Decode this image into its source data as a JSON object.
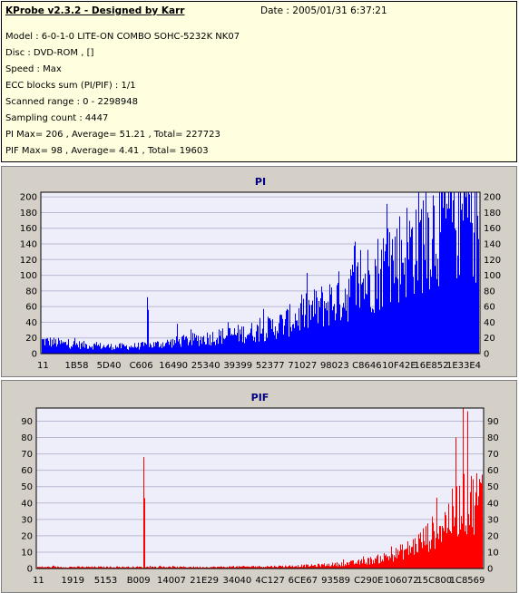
{
  "header": {
    "app_title": "KProbe v2.3.2 - Designed by Karr",
    "date_text": "Date : 2005/01/31 6:37:21",
    "lines": [
      "Model : 6-0-1-0 LITE-ON COMBO SOHC-5232K NK07",
      "Disc : DVD-ROM ,  []",
      "Speed : Max",
      "ECC blocks sum (PI/PIF) : 1/1",
      "Scanned range : 0 - 2298948",
      "Sampling count : 4447",
      "PI Max= 206 , Average= 51.21 , Total= 227723",
      "PIF Max= 98 , Average= 4.41 , Total= 19603"
    ]
  },
  "colors": {
    "panel_bg": "#d4d0c8",
    "info_bg": "#ffffe0",
    "plot_bg": "#eeeefa",
    "pi_bar": "#0000ff",
    "pif_bar": "#ff0000",
    "title_color": "#000080"
  },
  "chart_data": [
    {
      "type": "bar",
      "title": "PI",
      "ylim": [
        0,
        206
      ],
      "yticks": [
        0,
        20,
        40,
        60,
        80,
        100,
        120,
        140,
        160,
        180,
        200
      ],
      "xtick_labels": [
        "11",
        "1B58",
        "5D40",
        "C606",
        "16490",
        "25340",
        "39399",
        "52377",
        "71027",
        "98023",
        "C8646",
        "10F42E",
        "16E852",
        "1E33E4"
      ],
      "grid": true,
      "x_range": [
        0,
        2298948
      ],
      "profile": {
        "x": [
          0.0,
          0.05,
          0.1,
          0.15,
          0.2,
          0.25,
          0.3,
          0.35,
          0.4,
          0.45,
          0.5,
          0.55,
          0.6,
          0.65,
          0.7,
          0.75,
          0.8,
          0.85,
          0.88,
          0.9,
          0.92,
          0.95,
          1.0
        ],
        "y": [
          18,
          14,
          12,
          10,
          10,
          12,
          16,
          20,
          24,
          28,
          32,
          42,
          56,
          70,
          86,
          108,
          130,
          155,
          170,
          182,
          190,
          196,
          198
        ]
      },
      "spikes": [
        {
          "x": 0.241,
          "y": 72
        },
        {
          "x": 0.243,
          "y": 56
        },
        {
          "x": 0.31,
          "y": 38
        }
      ]
    },
    {
      "type": "bar",
      "title": "PIF",
      "ylim": [
        0,
        98
      ],
      "yticks": [
        0,
        10,
        20,
        30,
        40,
        50,
        60,
        70,
        80,
        90
      ],
      "xtick_labels": [
        "11",
        "1919",
        "5153",
        "B009",
        "14007",
        "21E29",
        "34040",
        "4C127",
        "6CE67",
        "93589",
        "C290E",
        "106072",
        "15C800",
        "1C8569"
      ],
      "grid": true,
      "x_range": [
        0,
        2298948
      ],
      "profile": {
        "x": [
          0.0,
          0.2,
          0.4,
          0.55,
          0.62,
          0.68,
          0.72,
          0.76,
          0.8,
          0.84,
          0.88,
          0.92,
          0.95,
          1.0
        ],
        "y": [
          1,
          1,
          1,
          1.5,
          2,
          3,
          4,
          6,
          9,
          14,
          22,
          32,
          42,
          48
        ]
      },
      "spikes": [
        {
          "x": 0.238,
          "y": 68
        },
        {
          "x": 0.24,
          "y": 43
        },
        {
          "x": 0.958,
          "y": 98
        },
        {
          "x": 0.968,
          "y": 96
        },
        {
          "x": 0.94,
          "y": 80
        }
      ]
    }
  ]
}
